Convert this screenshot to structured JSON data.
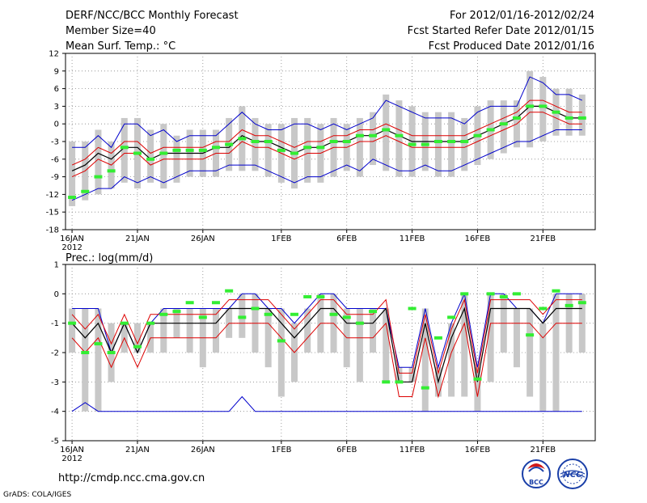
{
  "header": {
    "title": "DERF/NCC/BCC Monthly Forecast",
    "member_size": "Member Size=40",
    "variable": "Mean Surf. Temp.: °C",
    "period": "For 2012/01/16-2012/02/24",
    "start_date": "Fcst Started Refer Date 2012/01/15",
    "produced_date": "Fcst Produced Date 2012/01/16"
  },
  "footer": {
    "url": "http://cmdp.ncc.cma.gov.cn",
    "credit": "GrADS: COLA/IGES",
    "logo_bcc": "BCC",
    "logo_ncc": "NCC"
  },
  "colors": {
    "max_min": "#0000cc",
    "ensemble_mean": "#000000",
    "spread": "#dd0000",
    "member_bar": "#c8c8c8",
    "observation": "#33ee33",
    "grid": "#888888"
  },
  "chart_data": [
    {
      "type": "line",
      "title": "Mean Surf. Temp.: °C",
      "x": [
        0,
        1,
        2,
        3,
        4,
        5,
        6,
        7,
        8,
        9,
        10,
        11,
        12,
        13,
        14,
        15,
        16,
        17,
        18,
        19,
        20,
        21,
        22,
        23,
        24,
        25,
        26,
        27,
        28,
        29,
        30,
        31,
        32,
        33,
        34,
        35,
        36,
        37,
        38,
        39
      ],
      "x_ticks": [
        0,
        5,
        10,
        16,
        21,
        26,
        31,
        36
      ],
      "x_tick_labels": [
        "16JAN",
        "21JAN",
        "26JAN",
        "1FEB",
        "6FEB",
        "11FEB",
        "16FEB",
        "21FEB"
      ],
      "x_year_label": "2012",
      "xlim": [
        -0.5,
        40
      ],
      "ylim": [
        -18,
        12
      ],
      "yticks": [
        -18,
        -15,
        -12,
        -9,
        -6,
        -3,
        0,
        3,
        6,
        9,
        12
      ],
      "ytick_labels": [
        "-18",
        "-15",
        "-12",
        "-9",
        "-6",
        "-3",
        "0",
        "3",
        "6",
        "9",
        "12"
      ],
      "grid": true,
      "series": [
        {
          "name": "max",
          "values": [
            -4,
            -4,
            -2,
            -4,
            0,
            0,
            -2,
            -1,
            -3,
            -2,
            -2,
            -2,
            0,
            2,
            0,
            -1,
            -1,
            0,
            0,
            -1,
            0,
            -1,
            0,
            1,
            4,
            3,
            2,
            1,
            1,
            1,
            0,
            2,
            3,
            3,
            3,
            8,
            7,
            5,
            5,
            4
          ]
        },
        {
          "name": "min",
          "values": [
            -13,
            -12,
            -11,
            -11,
            -9,
            -10,
            -9,
            -10,
            -9,
            -8,
            -8,
            -8,
            -7,
            -7,
            -7,
            -8,
            -9,
            -10,
            -9,
            -9,
            -8,
            -7,
            -8,
            -6,
            -7,
            -8,
            -8,
            -7,
            -8,
            -8,
            -7,
            -6,
            -5,
            -4,
            -3,
            -3,
            -2,
            -1,
            -1,
            -1
          ]
        },
        {
          "name": "mean",
          "values": [
            -8,
            -7,
            -5,
            -6,
            -4,
            -4,
            -6,
            -5,
            -5,
            -5,
            -5,
            -4,
            -4,
            -2,
            -3,
            -3,
            -4,
            -5,
            -4,
            -4,
            -3,
            -3,
            -2,
            -2,
            -1,
            -2,
            -3,
            -3,
            -3,
            -3,
            -3,
            -2,
            -1,
            0,
            1,
            3,
            3,
            2,
            1,
            1
          ]
        },
        {
          "name": "mean_plus_sd",
          "values": [
            -7,
            -6,
            -4,
            -5,
            -3,
            -3,
            -5,
            -4,
            -4,
            -4,
            -4,
            -3,
            -3,
            -1,
            -2,
            -2,
            -3,
            -4,
            -3,
            -3,
            -2,
            -2,
            -1,
            -1,
            0,
            -1,
            -2,
            -2,
            -2,
            -2,
            -2,
            -1,
            0,
            1,
            2,
            4,
            4,
            3,
            2,
            2
          ]
        },
        {
          "name": "mean_minus_sd",
          "values": [
            -9,
            -8,
            -6,
            -7,
            -5,
            -5,
            -7,
            -6,
            -6,
            -6,
            -6,
            -5,
            -5,
            -3,
            -4,
            -4,
            -5,
            -6,
            -5,
            -5,
            -4,
            -4,
            -3,
            -3,
            -2,
            -3,
            -4,
            -4,
            -4,
            -4,
            -4,
            -3,
            -2,
            -1,
            0,
            2,
            2,
            1,
            0,
            0
          ]
        },
        {
          "name": "observation",
          "values": [
            -12.5,
            -11.5,
            -9,
            -8,
            -4,
            -5,
            -6,
            -5,
            -4.5,
            -4.5,
            -4.5,
            -4,
            -3.5,
            -2.5,
            -3,
            -3,
            -4.5,
            -5,
            -4,
            -4,
            -3,
            -3,
            -2,
            -2,
            -1,
            -2,
            -3.5,
            -3.5,
            -3,
            -3,
            -3,
            -2,
            -1,
            0,
            1,
            3,
            3,
            2,
            1,
            1
          ]
        }
      ],
      "bars": {
        "name": "ensemble spread",
        "low": [
          -14,
          -13,
          -12,
          -11,
          -10,
          -11,
          -10,
          -11,
          -10,
          -9,
          -9,
          -9,
          -8,
          -8,
          -8,
          -9,
          -10,
          -11,
          -10,
          -10,
          -9,
          -8,
          -9,
          -7,
          -8,
          -9,
          -9,
          -8,
          -9,
          -9,
          -8,
          -7,
          -6,
          -5,
          -4,
          -4,
          -3,
          -2,
          -2,
          -2
        ],
        "high": [
          -3,
          -3,
          -1,
          -3,
          1,
          1,
          -1,
          0,
          -2,
          -1,
          -1,
          -1,
          1,
          3,
          1,
          0,
          0,
          1,
          1,
          0,
          1,
          0,
          1,
          2,
          5,
          4,
          3,
          2,
          2,
          2,
          1,
          3,
          4,
          4,
          4,
          9,
          8,
          6,
          6,
          5
        ]
      }
    },
    {
      "type": "line",
      "title": "Prec.: log(mm/d)",
      "x": [
        0,
        1,
        2,
        3,
        4,
        5,
        6,
        7,
        8,
        9,
        10,
        11,
        12,
        13,
        14,
        15,
        16,
        17,
        18,
        19,
        20,
        21,
        22,
        23,
        24,
        25,
        26,
        27,
        28,
        29,
        30,
        31,
        32,
        33,
        34,
        35,
        36,
        37,
        38,
        39
      ],
      "x_ticks": [
        0,
        5,
        10,
        16,
        21,
        26,
        31,
        36
      ],
      "x_tick_labels": [
        "16JAN",
        "21JAN",
        "26JAN",
        "1FEB",
        "6FEB",
        "11FEB",
        "16FEB",
        "21FEB"
      ],
      "x_year_label": "2012",
      "xlim": [
        -0.5,
        40
      ],
      "ylim": [
        -5,
        1
      ],
      "yticks": [
        -5,
        -4,
        -3,
        -2,
        -1,
        0,
        1
      ],
      "ytick_labels": [
        "-5",
        "-4",
        "-3",
        "-2",
        "-1",
        "0",
        "1"
      ],
      "grid": true,
      "series": [
        {
          "name": "max",
          "values": [
            -0.5,
            -0.5,
            -0.5,
            -2,
            -1,
            -2,
            -1,
            -0.5,
            -0.5,
            -0.5,
            -0.5,
            -0.5,
            -0.5,
            0,
            0,
            -0.5,
            -0.5,
            -1,
            -0.5,
            0,
            0,
            -0.5,
            -0.5,
            -0.5,
            -0.5,
            -2.5,
            -2.5,
            -0.5,
            -2.5,
            -1,
            0,
            -2.5,
            0,
            0,
            -0.5,
            -0.5,
            -1,
            0,
            0,
            0
          ]
        },
        {
          "name": "min",
          "values": [
            -4,
            -3.7,
            -4,
            -4,
            -4,
            -4,
            -4,
            -4,
            -4,
            -4,
            -4,
            -4,
            -4,
            -3.5,
            -4,
            -4,
            -4,
            -4,
            -4,
            -4,
            -4,
            -4,
            -4,
            -4,
            -4,
            -4,
            -4,
            -4,
            -4,
            -4,
            -4,
            -4,
            -4,
            -4,
            -4,
            -4,
            -4,
            -4,
            -4,
            -4
          ]
        },
        {
          "name": "mean",
          "values": [
            -1,
            -1.5,
            -1,
            -2,
            -1,
            -2,
            -1,
            -1,
            -1,
            -1,
            -1,
            -1,
            -0.5,
            -0.5,
            -0.5,
            -0.5,
            -1,
            -1.5,
            -1,
            -0.5,
            -0.5,
            -1,
            -1,
            -1,
            -0.5,
            -3,
            -3,
            -1,
            -3,
            -1.5,
            -0.5,
            -3,
            -0.5,
            -0.5,
            -0.5,
            -0.5,
            -1,
            -0.5,
            -0.5,
            -0.5
          ]
        },
        {
          "name": "mean_plus_sd",
          "values": [
            -0.7,
            -1.2,
            -0.7,
            -1.7,
            -0.7,
            -1.7,
            -0.7,
            -0.7,
            -0.7,
            -0.7,
            -0.7,
            -0.7,
            -0.2,
            -0.2,
            -0.2,
            -0.2,
            -0.7,
            -1.2,
            -0.7,
            -0.2,
            -0.2,
            -0.7,
            -0.7,
            -0.7,
            -0.2,
            -2.7,
            -2.7,
            -0.7,
            -2.7,
            -1.2,
            -0.2,
            -2.7,
            -0.2,
            -0.2,
            -0.2,
            -0.2,
            -0.7,
            -0.2,
            -0.2,
            -0.2
          ]
        },
        {
          "name": "mean_minus_sd",
          "values": [
            -1.5,
            -2,
            -1.5,
            -2.5,
            -1.5,
            -2.5,
            -1.5,
            -1.5,
            -1.5,
            -1.5,
            -1.5,
            -1.5,
            -1,
            -1,
            -1,
            -1,
            -1.5,
            -2,
            -1.5,
            -1,
            -1,
            -1.5,
            -1.5,
            -1.5,
            -1,
            -3.5,
            -3.5,
            -1.5,
            -3.5,
            -2,
            -1,
            -3.5,
            -1,
            -1,
            -1,
            -1,
            -1.5,
            -1,
            -1,
            -1
          ]
        },
        {
          "name": "observation",
          "values": [
            -1,
            -2,
            -1.7,
            -2,
            -1,
            -1.8,
            -1,
            -0.7,
            -0.6,
            -0.3,
            -0.8,
            -0.3,
            0.1,
            -0.8,
            -0.5,
            -0.7,
            -1.6,
            -0.7,
            -0.1,
            -0.1,
            -0.7,
            -0.8,
            -1,
            -0.6,
            -3,
            -3,
            -0.5,
            -3.2,
            -1.5,
            -0.8,
            0,
            -2.9,
            0,
            -0.1,
            0,
            -1.4,
            -0.5,
            0.1,
            -0.4,
            -0.3
          ]
        }
      ],
      "bars": {
        "name": "ensemble spread",
        "low": [
          -2,
          -4,
          -4,
          -3,
          -2,
          -2,
          -2,
          -2,
          -1.5,
          -2,
          -2.5,
          -2,
          -1.5,
          -1.5,
          -2,
          -2.5,
          -3.5,
          -3,
          -2,
          -2,
          -2,
          -2.5,
          -3,
          -2,
          -3,
          -3,
          -3,
          -4,
          -3.5,
          -3.5,
          -3.5,
          -4,
          -3,
          -2,
          -2.5,
          -3.5,
          -4,
          -4,
          -2,
          -2
        ],
        "high": [
          -0.5,
          -0.5,
          -0.5,
          -1,
          -1,
          -1,
          -1,
          -0.5,
          -0.5,
          -0.5,
          -0.5,
          -0.5,
          -0.5,
          0,
          0,
          -0.5,
          -0.5,
          -1,
          -0.5,
          0,
          0,
          -0.5,
          -0.5,
          -0.5,
          -0.5,
          -2.5,
          -2.5,
          -0.5,
          -2.5,
          -1,
          0,
          -2.5,
          0,
          0,
          -0.5,
          -0.5,
          -1,
          0,
          0,
          0
        ]
      }
    }
  ]
}
